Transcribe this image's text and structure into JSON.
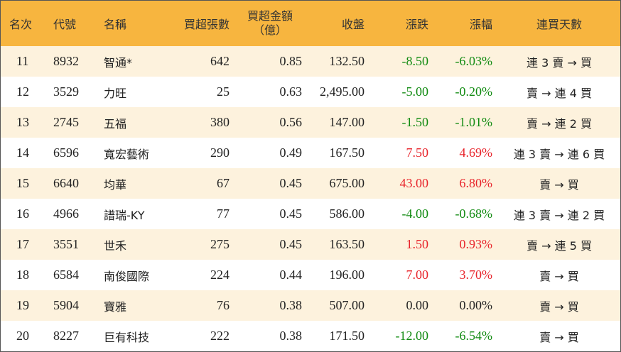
{
  "header": {
    "rank": "名次",
    "code": "代號",
    "name": "名稱",
    "net_lots": "買超張數",
    "net_amount_line1": "買超金額",
    "net_amount_line2": "（億）",
    "close": "收盤",
    "change": "漲跌",
    "change_pct": "漲幅",
    "streak": "連買天數"
  },
  "colors": {
    "header_bg": "#f7b53f",
    "stripe_bg": "#fdf2dd",
    "up": "#e8232a",
    "down": "#108a10"
  },
  "rows": [
    {
      "rank": "11",
      "code": "8932",
      "name": "智通*",
      "lots": "642",
      "amount": "0.85",
      "close": "132.50",
      "change": "-8.50",
      "pct": "-6.03%",
      "dir": "neg",
      "streak": "連 3 賣 → 買"
    },
    {
      "rank": "12",
      "code": "3529",
      "name": "力旺",
      "lots": "25",
      "amount": "0.63",
      "close": "2,495.00",
      "change": "-5.00",
      "pct": "-0.20%",
      "dir": "neg",
      "streak": "賣 → 連 4 買"
    },
    {
      "rank": "13",
      "code": "2745",
      "name": "五福",
      "lots": "380",
      "amount": "0.56",
      "close": "147.00",
      "change": "-1.50",
      "pct": "-1.01%",
      "dir": "neg",
      "streak": "賣 → 連 2 買"
    },
    {
      "rank": "14",
      "code": "6596",
      "name": "寬宏藝術",
      "lots": "290",
      "amount": "0.49",
      "close": "167.50",
      "change": "7.50",
      "pct": "4.69%",
      "dir": "pos",
      "streak": "連 3 賣 → 連 6 買"
    },
    {
      "rank": "15",
      "code": "6640",
      "name": "均華",
      "lots": "67",
      "amount": "0.45",
      "close": "675.00",
      "change": "43.00",
      "pct": "6.80%",
      "dir": "pos",
      "streak": "賣 → 買"
    },
    {
      "rank": "16",
      "code": "4966",
      "name": "譜瑞-KY",
      "lots": "77",
      "amount": "0.45",
      "close": "586.00",
      "change": "-4.00",
      "pct": "-0.68%",
      "dir": "neg",
      "streak": "連 3 賣 → 連 2 買"
    },
    {
      "rank": "17",
      "code": "3551",
      "name": "世禾",
      "lots": "275",
      "amount": "0.45",
      "close": "163.50",
      "change": "1.50",
      "pct": "0.93%",
      "dir": "pos",
      "streak": "賣 → 連 5 買"
    },
    {
      "rank": "18",
      "code": "6584",
      "name": "南俊國際",
      "lots": "224",
      "amount": "0.44",
      "close": "196.00",
      "change": "7.00",
      "pct": "3.70%",
      "dir": "pos",
      "streak": "賣 → 買"
    },
    {
      "rank": "19",
      "code": "5904",
      "name": "寶雅",
      "lots": "76",
      "amount": "0.38",
      "close": "507.00",
      "change": "0.00",
      "pct": "0.00%",
      "dir": "zero",
      "streak": "賣 → 買"
    },
    {
      "rank": "20",
      "code": "8227",
      "name": "巨有科技",
      "lots": "222",
      "amount": "0.38",
      "close": "171.50",
      "change": "-12.00",
      "pct": "-6.54%",
      "dir": "neg",
      "streak": "賣 → 買"
    }
  ]
}
